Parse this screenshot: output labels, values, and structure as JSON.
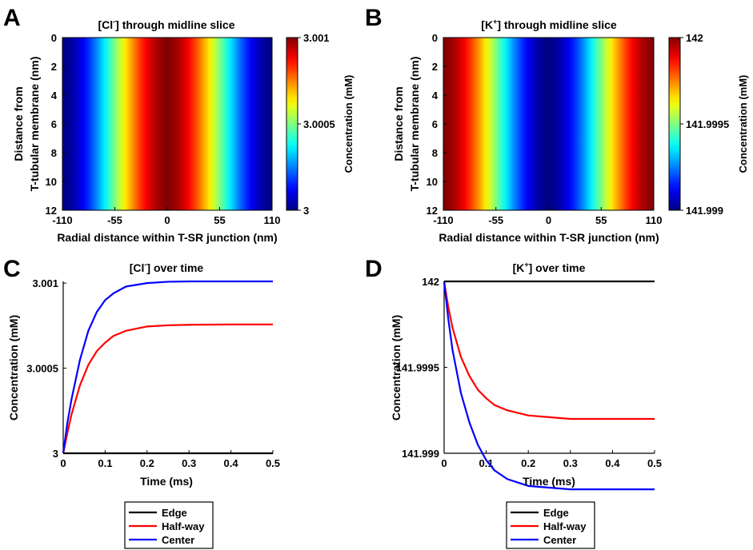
{
  "panels": {
    "A": "A",
    "B": "B",
    "C": "C",
    "D": "D"
  },
  "colors": {
    "edge": "#000000",
    "halfway": "#ff0000",
    "center": "#0000ff"
  },
  "chart_data": [
    {
      "id": "A",
      "type": "heatmap",
      "title_pre": "[Cl",
      "title_sup": "-",
      "title_post": "] through midline slice",
      "xlabel": "Radial distance within T-SR junction (nm)",
      "ylabel_line1": "Distance from",
      "ylabel_line2": "T-tubular membrane (nm)",
      "xlim": [
        -110,
        110
      ],
      "ylim": [
        0,
        12
      ],
      "xticks": [
        -110,
        -55,
        0,
        55,
        110
      ],
      "yticks": [
        0,
        2,
        4,
        6,
        8,
        10,
        12
      ],
      "colorbar": {
        "label": "Concentration (mM)",
        "range": [
          3,
          3.001
        ],
        "ticks": [
          3,
          3.0005,
          3.001
        ],
        "tick_labels": [
          "3",
          "3.0005",
          "3.001"
        ]
      },
      "profile": "center-high",
      "colormap": "jet"
    },
    {
      "id": "B",
      "type": "heatmap",
      "title_pre": "[K",
      "title_sup": "+",
      "title_post": "] through midline slice",
      "xlabel": "Radial distance within T-SR junction (nm)",
      "ylabel_line1": "Distance from",
      "ylabel_line2": "T-tubular membrane (nm)",
      "xlim": [
        -110,
        110
      ],
      "ylim": [
        0,
        12
      ],
      "xticks": [
        -110,
        -55,
        0,
        55,
        110
      ],
      "yticks": [
        0,
        2,
        4,
        6,
        8,
        10,
        12
      ],
      "colorbar": {
        "label": "Concentration (mM)",
        "range": [
          141.999,
          142
        ],
        "ticks": [
          141.999,
          141.9995,
          142
        ],
        "tick_labels": [
          "141.999",
          "141.9995",
          "142"
        ]
      },
      "profile": "center-low",
      "colormap": "jet"
    },
    {
      "id": "C",
      "type": "line",
      "title_pre": "[Cl",
      "title_sup": "-",
      "title_post": "] over time",
      "xlabel": "Time (ms)",
      "ylabel": "Concentration (mM)",
      "xlim": [
        0,
        0.5
      ],
      "ylim": [
        3,
        3.00101
      ],
      "xticks": [
        0,
        0.1,
        0.2,
        0.3,
        0.4,
        0.5
      ],
      "xtick_labels": [
        "0",
        "0.1",
        "0.2",
        "0.3",
        "0.4",
        "0.5"
      ],
      "yticks": [
        3,
        3.0005,
        3.001
      ],
      "ytick_labels": [
        "3",
        "3.0005",
        "3.001"
      ],
      "series": [
        {
          "name": "Edge",
          "color": "#000000",
          "x": [
            0,
            0.5
          ],
          "y": [
            3,
            3
          ]
        },
        {
          "name": "Half-way",
          "color": "#ff0000",
          "x": [
            0,
            0.01,
            0.02,
            0.04,
            0.06,
            0.08,
            0.1,
            0.12,
            0.15,
            0.2,
            0.25,
            0.3,
            0.4,
            0.5
          ],
          "y": [
            3,
            3.00012,
            3.00023,
            3.0004,
            3.00052,
            3.0006,
            3.00065,
            3.00069,
            3.00072,
            3.000745,
            3.000752,
            3.000755,
            3.000757,
            3.000757
          ]
        },
        {
          "name": "Center",
          "color": "#0000ff",
          "x": [
            0,
            0.01,
            0.02,
            0.04,
            0.06,
            0.08,
            0.1,
            0.12,
            0.15,
            0.2,
            0.25,
            0.3,
            0.4,
            0.5
          ],
          "y": [
            3,
            3.00018,
            3.00032,
            3.00055,
            3.00072,
            3.00083,
            3.0009,
            3.00094,
            3.00098,
            3.001,
            3.001008,
            3.00101,
            3.00101,
            3.00101
          ]
        }
      ],
      "legend": [
        "Edge",
        "Half-way",
        "Center"
      ]
    },
    {
      "id": "D",
      "type": "line",
      "title_pre": "[K",
      "title_sup": "+",
      "title_post": "] over time",
      "xlabel": "Time (ms)",
      "ylabel": "Concentration (mM)",
      "xlim": [
        0,
        0.5
      ],
      "ylim": [
        141.999,
        142
      ],
      "xticks": [
        0,
        0.1,
        0.2,
        0.3,
        0.4,
        0.5
      ],
      "xtick_labels": [
        "0",
        "0.1",
        "0.2",
        "0.3",
        "0.4",
        "0.5"
      ],
      "yticks": [
        141.999,
        141.9995,
        142
      ],
      "ytick_labels": [
        "141.999",
        "141.9995",
        "142"
      ],
      "series": [
        {
          "name": "Edge",
          "color": "#000000",
          "x": [
            0,
            0.5
          ],
          "y": [
            142,
            142
          ]
        },
        {
          "name": "Half-way",
          "color": "#ff0000",
          "x": [
            0,
            0.01,
            0.02,
            0.04,
            0.06,
            0.08,
            0.1,
            0.12,
            0.15,
            0.2,
            0.25,
            0.3,
            0.4,
            0.5
          ],
          "y": [
            142,
            141.99985,
            141.99973,
            141.99956,
            141.99945,
            141.99937,
            141.99932,
            141.99928,
            141.99925,
            141.99922,
            141.99921,
            141.9992,
            141.9992,
            141.9992
          ]
        },
        {
          "name": "Center",
          "color": "#0000ff",
          "x": [
            0,
            0.01,
            0.02,
            0.04,
            0.06,
            0.08,
            0.1,
            0.12,
            0.15,
            0.2,
            0.25,
            0.3,
            0.4,
            0.5
          ],
          "y": [
            142,
            141.99978,
            141.9996,
            141.99935,
            141.99918,
            141.99905,
            141.99896,
            141.9989,
            141.99885,
            141.99881,
            141.9988,
            141.99879,
            141.99879,
            141.99879
          ]
        }
      ],
      "legend": [
        "Edge",
        "Half-way",
        "Center"
      ]
    }
  ]
}
